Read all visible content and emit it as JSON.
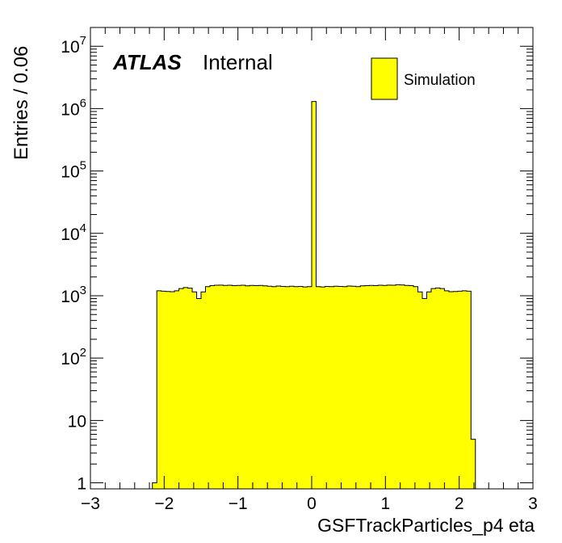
{
  "chart_data": {
    "type": "bar",
    "histogram": true,
    "log_y": true,
    "xlabel": "GSFTrackParticles_p4 eta",
    "ylabel": "Entries / 0.06",
    "xlim": [
      -3,
      3
    ],
    "ylim": [
      0.8,
      20000000
    ],
    "x_ticks": [
      {
        "value": -3,
        "label": "−3"
      },
      {
        "value": -2,
        "label": "−2"
      },
      {
        "value": -1,
        "label": "−1"
      },
      {
        "value": 0,
        "label": "0"
      },
      {
        "value": 1,
        "label": "1"
      },
      {
        "value": 2,
        "label": "2"
      },
      {
        "value": 3,
        "label": "3"
      }
    ],
    "y_ticks": [
      {
        "value": 1,
        "base": "1",
        "exp": ""
      },
      {
        "value": 10,
        "base": "10",
        "exp": ""
      },
      {
        "value": 100,
        "base": "10",
        "exp": "2"
      },
      {
        "value": 1000,
        "base": "10",
        "exp": "3"
      },
      {
        "value": 10000,
        "base": "10",
        "exp": "4"
      },
      {
        "value": 100000,
        "base": "10",
        "exp": "5"
      },
      {
        "value": 1000000,
        "base": "10",
        "exp": "6"
      },
      {
        "value": 10000000,
        "base": "10",
        "exp": "7"
      }
    ],
    "bin_width": 0.06,
    "bins_start": -2.16,
    "values": [
      1,
      1200,
      1180,
      1170,
      1160,
      1200,
      1300,
      1350,
      1320,
      1150,
      900,
      1150,
      1400,
      1450,
      1470,
      1480,
      1460,
      1470,
      1450,
      1460,
      1470,
      1440,
      1460,
      1450,
      1460,
      1440,
      1420,
      1400,
      1430,
      1410,
      1400,
      1420,
      1400,
      1410,
      1380,
      1400,
      1300000,
      1400,
      1380,
      1410,
      1400,
      1420,
      1410,
      1400,
      1430,
      1420,
      1400,
      1440,
      1450,
      1460,
      1450,
      1470,
      1460,
      1480,
      1470,
      1500,
      1490,
      1460,
      1450,
      1400,
      1150,
      900,
      1150,
      1300,
      1330,
      1300,
      1200,
      1160,
      1170,
      1180,
      1200,
      1180,
      5
    ],
    "series": [
      {
        "name": "Simulation",
        "color": "#ffff00",
        "edge_color": "#000000"
      }
    ],
    "legend_position": "top-right"
  },
  "labels": {
    "atlas": "ATLAS",
    "internal": "Internal"
  }
}
